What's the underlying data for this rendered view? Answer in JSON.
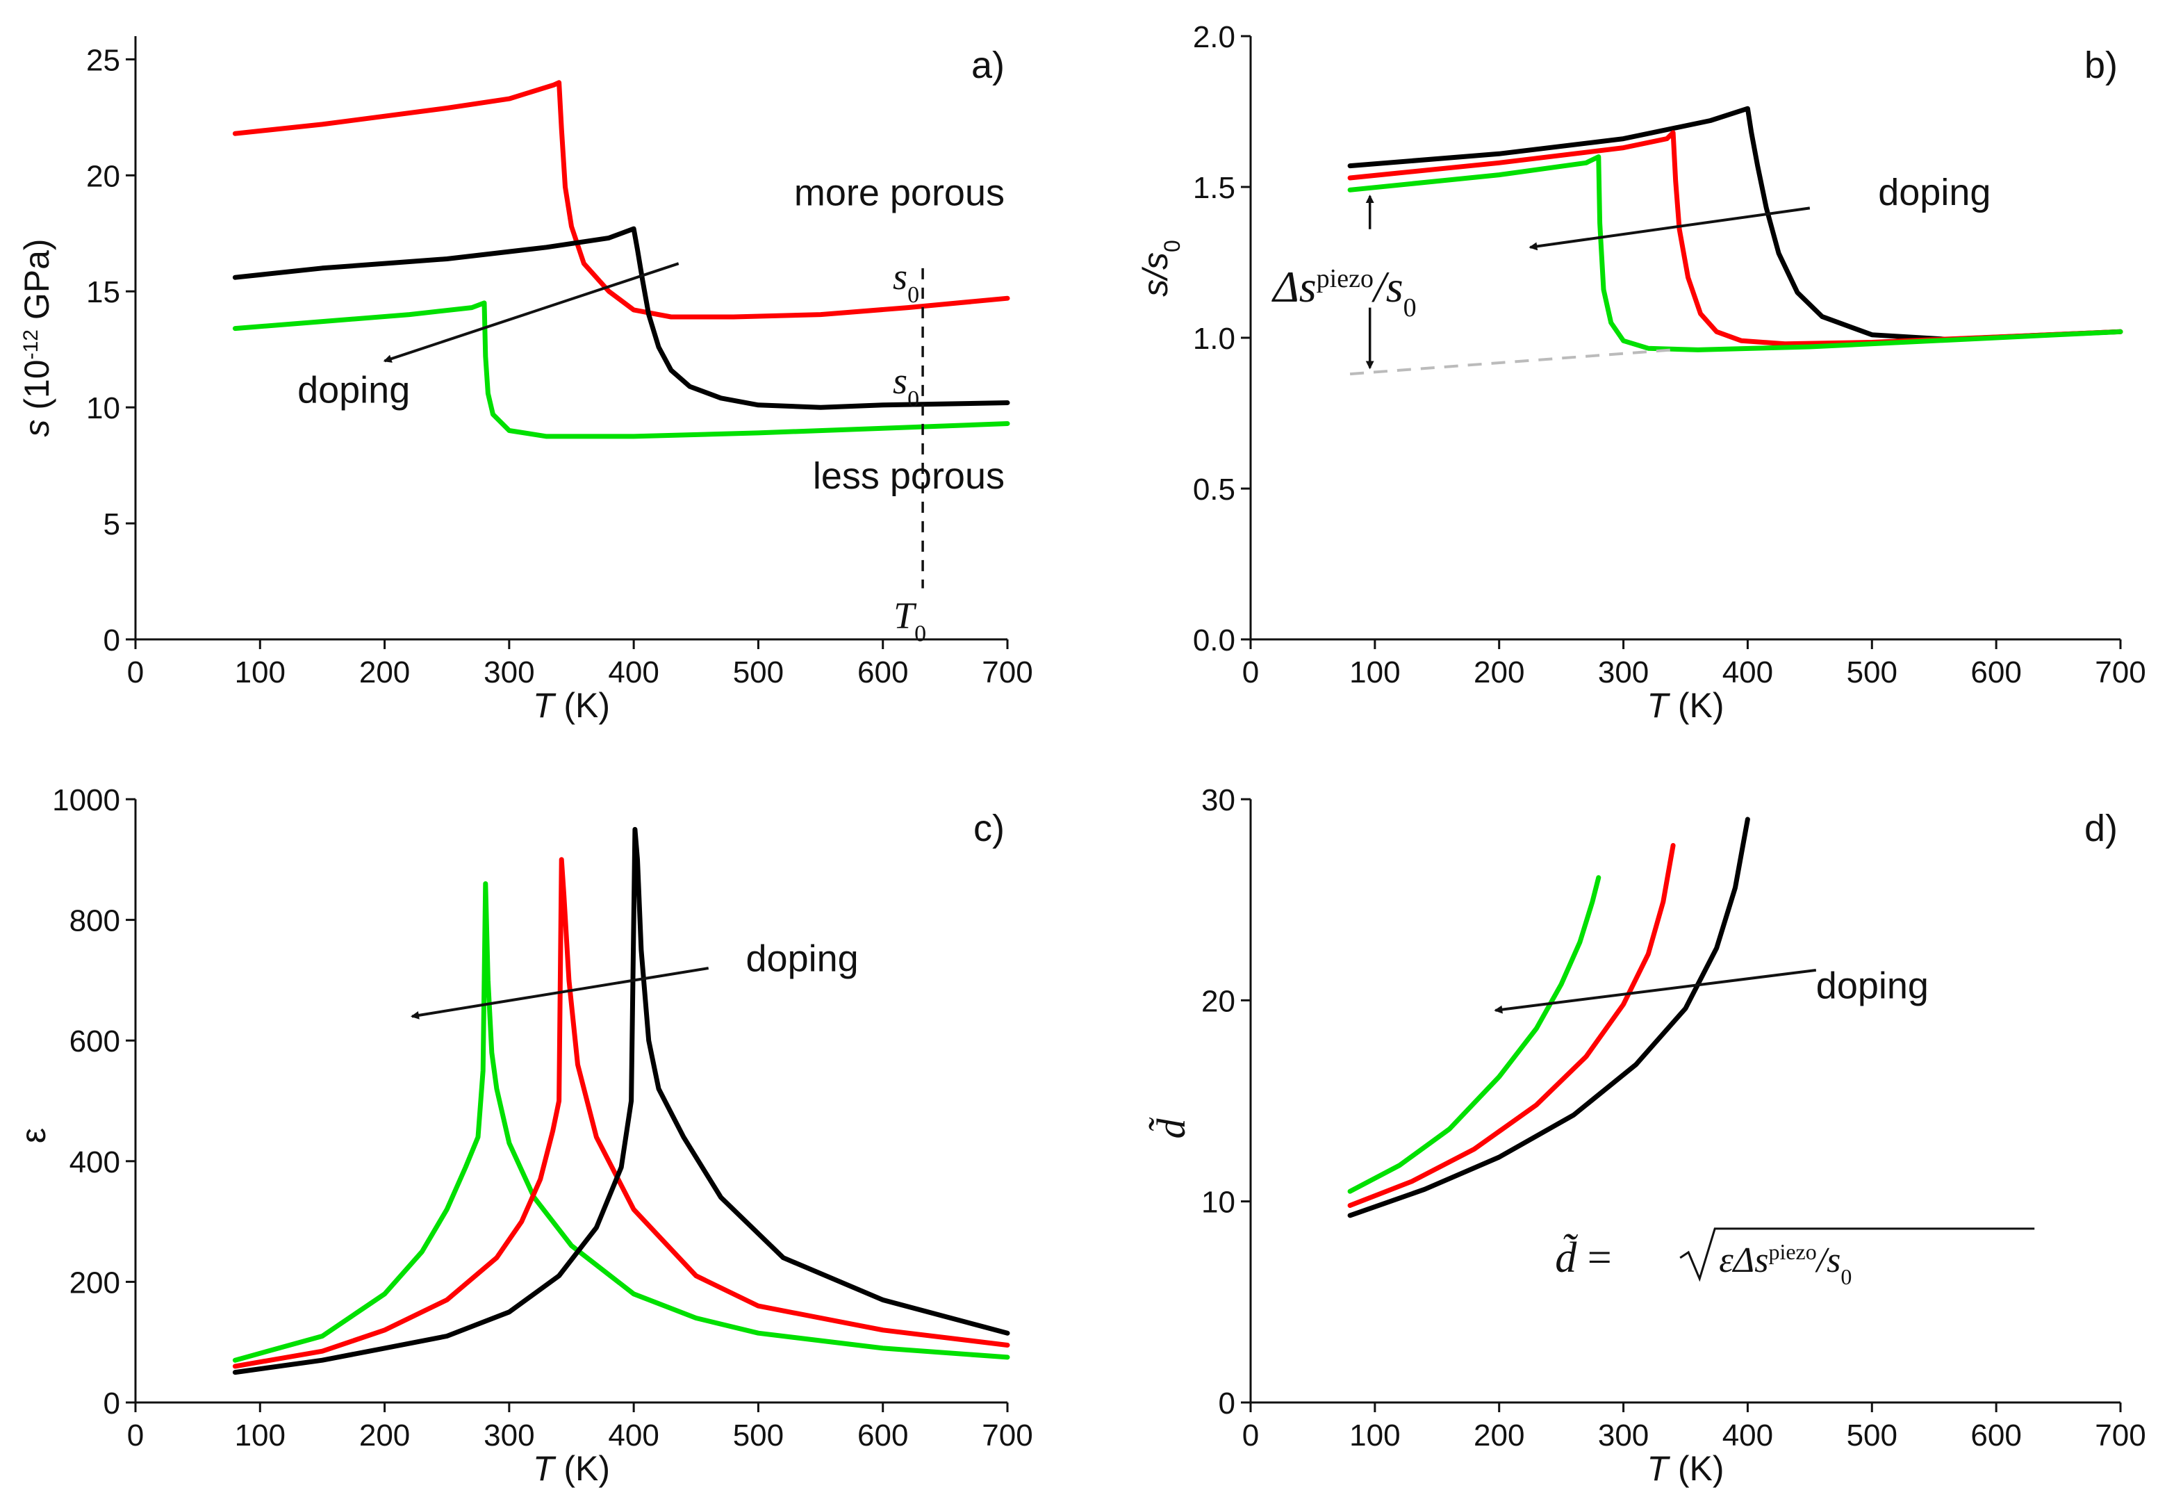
{
  "chart_data": [
    {
      "panel": "a)",
      "type": "line",
      "xlabel_var": "T",
      "xlabel_unit": "(K)",
      "ylabel_var": "s",
      "ylabel_unit_pre": "(10",
      "ylabel_unit_exp": "-12",
      "ylabel_unit_post": " GPa)",
      "xlim": [
        0,
        700
      ],
      "ylim": [
        0,
        26
      ],
      "xticks": [
        0,
        100,
        200,
        300,
        400,
        500,
        600,
        700
      ],
      "yticks": [
        0,
        5,
        10,
        15,
        20,
        25
      ],
      "series": [
        {
          "color": "#ff0000",
          "x": [
            80,
            150,
            250,
            300,
            336,
            340,
            342,
            345,
            350,
            360,
            380,
            400,
            430,
            480,
            550,
            620,
            700
          ],
          "y": [
            21.8,
            22.2,
            22.9,
            23.3,
            23.9,
            24.0,
            22.0,
            19.5,
            17.8,
            16.2,
            15.0,
            14.2,
            13.9,
            13.9,
            14.0,
            14.3,
            14.7
          ]
        },
        {
          "color": "#000000",
          "x": [
            80,
            150,
            250,
            330,
            380,
            400,
            403,
            407,
            412,
            420,
            430,
            445,
            470,
            500,
            550,
            600,
            700
          ],
          "y": [
            15.6,
            16.0,
            16.4,
            16.9,
            17.3,
            17.7,
            16.8,
            15.5,
            14.0,
            12.6,
            11.6,
            10.9,
            10.4,
            10.1,
            10.0,
            10.1,
            10.2
          ]
        },
        {
          "color": "#00e000",
          "x": [
            80,
            150,
            220,
            270,
            280,
            281,
            283,
            287,
            300,
            330,
            400,
            500,
            600,
            700
          ],
          "y": [
            13.4,
            13.7,
            14.0,
            14.3,
            14.5,
            12.2,
            10.6,
            9.7,
            9.0,
            8.75,
            8.75,
            8.9,
            9.1,
            9.3
          ]
        }
      ],
      "annotations": {
        "more_porous": "more porous",
        "less_porous": "less porous",
        "doping": "doping",
        "s0_var": "s",
        "s0_sub": "0",
        "T0_var": "T",
        "T0_sub": "0"
      },
      "arrow": {
        "from": [
          436,
          16.2
        ],
        "to": [
          200,
          12.0
        ]
      },
      "dashed_T0": 632
    },
    {
      "panel": "b)",
      "type": "line",
      "xlabel_var": "T",
      "xlabel_unit": "(K)",
      "ylabel_var": "s/s",
      "ylabel_sub": "0",
      "xlim": [
        0,
        700
      ],
      "ylim": [
        0,
        2.0
      ],
      "xticks": [
        0,
        100,
        200,
        300,
        400,
        500,
        600,
        700
      ],
      "yticks": [
        "0.0",
        "0.5",
        "1.0",
        "1.5",
        "2.0"
      ],
      "series": [
        {
          "color": "#000000",
          "x": [
            80,
            200,
            300,
            370,
            400,
            403,
            408,
            415,
            425,
            440,
            460,
            500,
            560,
            700
          ],
          "y": [
            1.57,
            1.61,
            1.66,
            1.72,
            1.76,
            1.68,
            1.57,
            1.43,
            1.28,
            1.15,
            1.07,
            1.01,
            0.995,
            1.02
          ]
        },
        {
          "color": "#ff0000",
          "x": [
            80,
            200,
            300,
            335,
            340,
            342,
            345,
            352,
            362,
            375,
            395,
            430,
            500,
            700
          ],
          "y": [
            1.53,
            1.58,
            1.63,
            1.66,
            1.68,
            1.52,
            1.36,
            1.2,
            1.08,
            1.02,
            0.99,
            0.98,
            0.985,
            1.02
          ]
        },
        {
          "color": "#00e000",
          "x": [
            80,
            200,
            270,
            280,
            281,
            284,
            290,
            300,
            320,
            360,
            450,
            600,
            700
          ],
          "y": [
            1.49,
            1.54,
            1.58,
            1.6,
            1.38,
            1.16,
            1.05,
            0.99,
            0.965,
            0.96,
            0.97,
            1.0,
            1.02
          ]
        }
      ],
      "baseline_dashed": {
        "x": [
          80,
          340
        ],
        "y": [
          0.88,
          0.96
        ]
      },
      "annotations": {
        "doping": "doping",
        "delta": "Δs",
        "piezo": "piezo",
        "over": "/s",
        "sub0": "0"
      },
      "arrow": {
        "from": [
          450,
          1.43
        ],
        "to": [
          225,
          1.3
        ]
      },
      "delta_x": 96
    },
    {
      "panel": "c)",
      "type": "line",
      "xlabel_var": "T",
      "xlabel_unit": "(K)",
      "ylabel": "ε",
      "xlim": [
        0,
        700
      ],
      "ylim": [
        0,
        1000
      ],
      "xticks": [
        0,
        100,
        200,
        300,
        400,
        500,
        600,
        700
      ],
      "yticks": [
        0,
        200,
        400,
        600,
        800,
        1000
      ],
      "series": [
        {
          "color": "#00e000",
          "x": [
            80,
            150,
            200,
            230,
            250,
            265,
            275,
            279,
            281,
            283,
            286,
            290,
            300,
            320,
            350,
            400,
            450,
            500,
            600,
            700
          ],
          "y": [
            70,
            110,
            180,
            250,
            320,
            390,
            440,
            550,
            860,
            700,
            580,
            520,
            430,
            340,
            260,
            180,
            140,
            115,
            90,
            75
          ]
        },
        {
          "color": "#ff0000",
          "x": [
            80,
            150,
            200,
            250,
            290,
            310,
            325,
            335,
            340,
            342,
            344,
            348,
            355,
            370,
            400,
            450,
            500,
            600,
            700
          ],
          "y": [
            60,
            85,
            120,
            170,
            240,
            300,
            370,
            450,
            500,
            900,
            840,
            700,
            560,
            440,
            320,
            210,
            160,
            120,
            95
          ]
        },
        {
          "color": "#000000",
          "x": [
            80,
            150,
            200,
            250,
            300,
            340,
            370,
            390,
            398,
            401,
            403,
            406,
            412,
            420,
            440,
            470,
            520,
            600,
            700
          ],
          "y": [
            50,
            70,
            90,
            110,
            150,
            210,
            290,
            390,
            500,
            950,
            900,
            750,
            600,
            520,
            440,
            340,
            240,
            170,
            115
          ]
        }
      ],
      "annotations": {
        "doping": "doping"
      },
      "arrow": {
        "from": [
          460,
          720
        ],
        "to": [
          222,
          640
        ]
      }
    },
    {
      "panel": "d)",
      "type": "line",
      "xlabel_var": "T",
      "xlabel_unit": "(K)",
      "ylabel": "d̃",
      "xlim": [
        0,
        700
      ],
      "ylim": [
        0,
        30
      ],
      "xticks": [
        0,
        100,
        200,
        300,
        400,
        500,
        600,
        700
      ],
      "yticks": [
        0,
        10,
        20,
        30
      ],
      "series": [
        {
          "color": "#00e000",
          "x": [
            80,
            120,
            160,
            200,
            230,
            250,
            265,
            275,
            280
          ],
          "y": [
            10.5,
            11.8,
            13.6,
            16.2,
            18.6,
            20.8,
            22.9,
            24.9,
            26.1
          ]
        },
        {
          "color": "#ff0000",
          "x": [
            80,
            130,
            180,
            230,
            270,
            300,
            320,
            332,
            340
          ],
          "y": [
            9.8,
            11.0,
            12.6,
            14.8,
            17.2,
            19.8,
            22.3,
            24.9,
            27.7
          ]
        },
        {
          "color": "#000000",
          "x": [
            80,
            140,
            200,
            260,
            310,
            350,
            375,
            390,
            400
          ],
          "y": [
            9.3,
            10.6,
            12.2,
            14.3,
            16.8,
            19.6,
            22.6,
            25.6,
            29.0
          ]
        }
      ],
      "annotations": {
        "doping": "doping",
        "formula_lhs": "d̃",
        "formula_eq": "=",
        "formula_inner": "εΔs",
        "formula_piezo": "piezo",
        "formula_tail": "/s",
        "formula_sub": "0"
      },
      "arrow": {
        "from": [
          455,
          21.5
        ],
        "to": [
          197,
          19.5
        ]
      }
    }
  ]
}
